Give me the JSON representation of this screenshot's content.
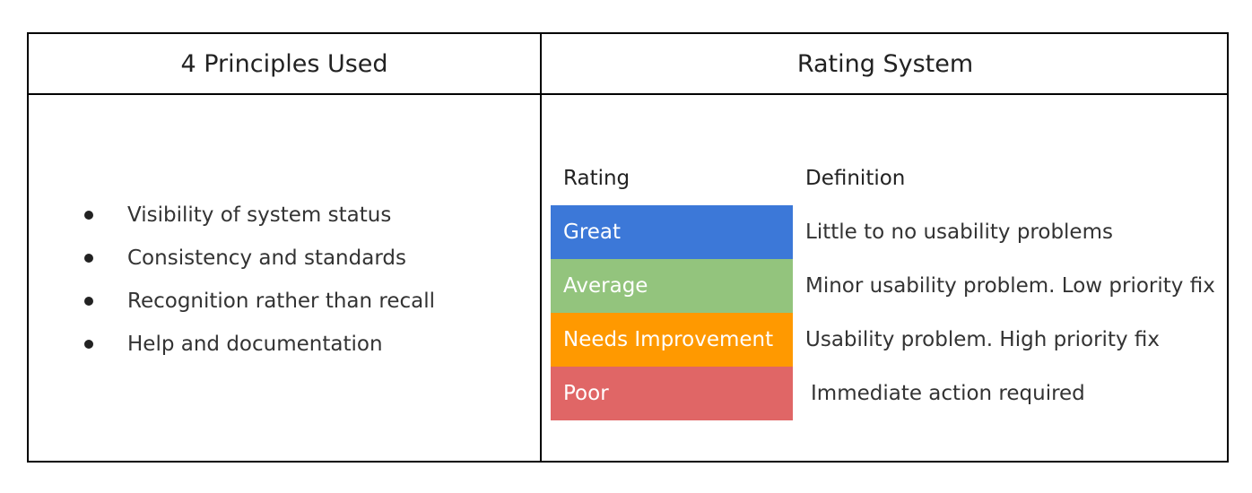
{
  "headers": {
    "left": "4 Principles Used",
    "right": "Rating System"
  },
  "principles": [
    "Visibility of system status",
    "Consistency and standards",
    "Recognition rather than recall",
    "Help and documentation"
  ],
  "rating_table": {
    "rating_header": "Rating",
    "definition_header": "Definition",
    "rows": [
      {
        "rating": "Great",
        "definition": "Little to no usability problems",
        "color": "#3c78d8"
      },
      {
        "rating": "Average",
        "definition": "Minor usability problem. Low priority fix",
        "color": "#93c47d"
      },
      {
        "rating": "Needs Improvement",
        "definition": "Usability problem. High priority fix",
        "color": "#ff9900"
      },
      {
        "rating": "Poor",
        "definition": "Immediate action required",
        "color": "#e06666"
      }
    ]
  }
}
